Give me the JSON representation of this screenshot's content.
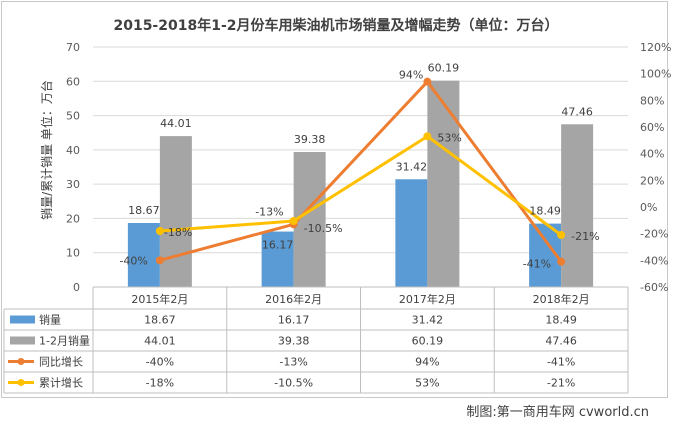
{
  "chart_data": {
    "type": "bar",
    "title": "2015-2018年1-2月份车用柴油机市场销量及增幅走势（单位：万台）",
    "ylabel": "销量/累计销量 单位：万台",
    "ylim": [
      0,
      70
    ],
    "y_ticks": [
      "0",
      "10",
      "20",
      "30",
      "40",
      "50",
      "60",
      "70"
    ],
    "y2lim": [
      -60,
      120
    ],
    "y2_ticks": [
      "-60%",
      "-40%",
      "-20%",
      "0%",
      "20%",
      "40%",
      "60%",
      "80%",
      "100%",
      "120%"
    ],
    "grid": true,
    "categories": [
      "2015年2月",
      "2016年2月",
      "2017年2月",
      "2018年2月"
    ],
    "series": [
      {
        "name": "销量",
        "kind": "bar",
        "axis": "left",
        "color": "#5b9bd5",
        "values": [
          18.67,
          16.17,
          31.42,
          18.49
        ],
        "labels": [
          "18.67",
          "16.17",
          "31.42",
          "18.49"
        ],
        "table": [
          "18.67",
          "16.17",
          "31.42",
          "18.49"
        ]
      },
      {
        "name": "1-2月销量",
        "kind": "bar",
        "axis": "left",
        "color": "#a5a5a5",
        "values": [
          44.01,
          39.38,
          60.19,
          47.46
        ],
        "labels": [
          "44.01",
          "39.38",
          "60.19",
          "47.46"
        ],
        "table": [
          "44.01",
          "39.38",
          "60.19",
          "47.46"
        ]
      },
      {
        "name": "同比增长",
        "kind": "line",
        "axis": "right",
        "color": "#ed7d31",
        "values": [
          -40,
          -13,
          94,
          -41
        ],
        "labels": [
          "-40%",
          "-13%",
          "94%",
          "-41%"
        ],
        "table": [
          "-40%",
          "-13%",
          "94%",
          "-41%"
        ]
      },
      {
        "name": "累计增长",
        "kind": "line",
        "axis": "right",
        "color": "#ffc000",
        "values": [
          -18,
          -10.5,
          53,
          -21
        ],
        "labels": [
          "-18%",
          "-10.5%",
          "53%",
          "-21%"
        ],
        "table": [
          "-18%",
          "-10.5%",
          "53%",
          "-21%"
        ]
      }
    ],
    "legend": "data-table"
  },
  "credit": "制图:第一商用车网 cvworld.cn"
}
